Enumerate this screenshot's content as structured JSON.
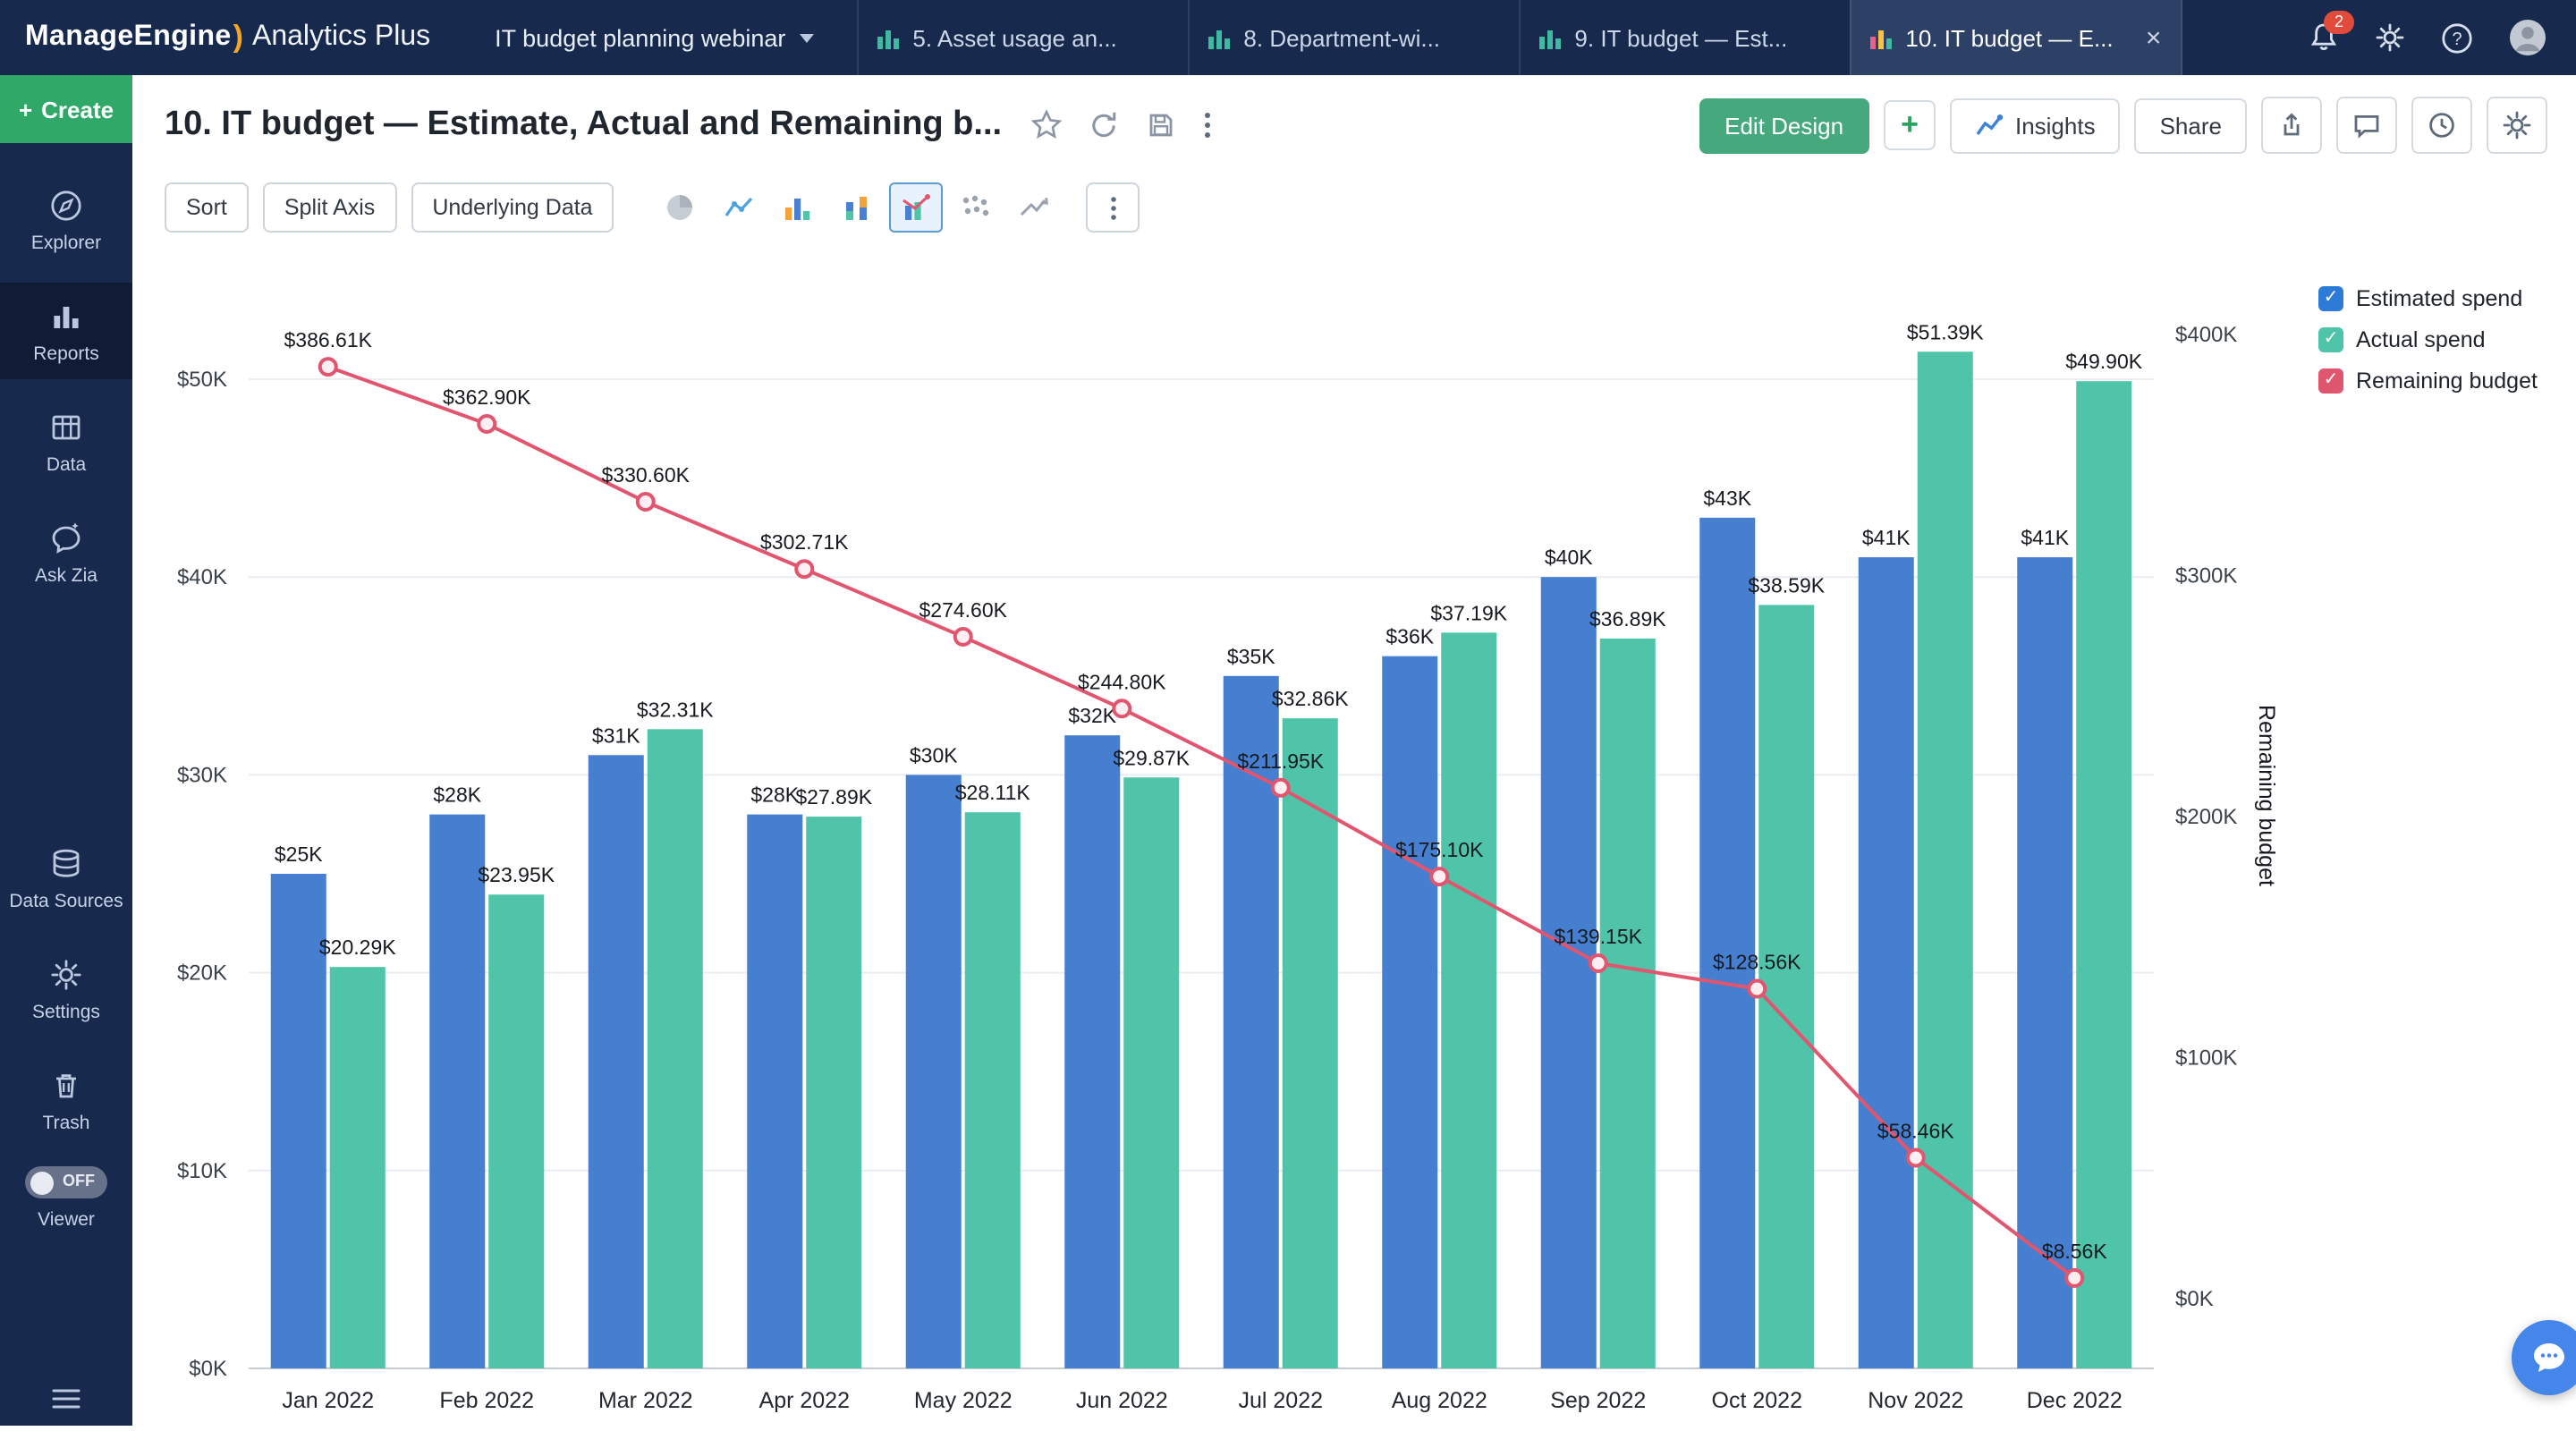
{
  "topbar": {
    "brand_primary": "ManageEngine",
    "brand_secondary": "Analytics Plus",
    "workspace_label": "IT budget planning webinar",
    "tabs": [
      {
        "label": "5. Asset usage an..."
      },
      {
        "label": "8. Department-wi..."
      },
      {
        "label": "9. IT budget — Est..."
      },
      {
        "label": "10. IT budget — E..."
      }
    ],
    "notification_count": "2"
  },
  "sidebar": {
    "create_label": "Create",
    "items": [
      {
        "label": "Explorer"
      },
      {
        "label": "Reports"
      },
      {
        "label": "Data"
      },
      {
        "label": "Ask Zia"
      },
      {
        "label": "Data Sources"
      },
      {
        "label": "Settings"
      },
      {
        "label": "Trash"
      }
    ],
    "viewer_state": "OFF",
    "viewer_label": "Viewer"
  },
  "header": {
    "title": "10. IT budget — Estimate, Actual and Remaining b...",
    "edit_design": "Edit Design",
    "add": "+",
    "insights": "Insights",
    "share": "Share"
  },
  "toolbar": {
    "sort": "Sort",
    "split_axis": "Split Axis",
    "underlying_data": "Underlying Data"
  },
  "chart_data": {
    "type": "combo",
    "categories": [
      "Jan 2022",
      "Feb 2022",
      "Mar 2022",
      "Apr 2022",
      "May 2022",
      "Jun 2022",
      "Jul 2022",
      "Aug 2022",
      "Sep 2022",
      "Oct 2022",
      "Nov 2022",
      "Dec 2022"
    ],
    "series": [
      {
        "name": "Estimated spend",
        "chart": "bar",
        "axis": "left",
        "color": "#477fd0",
        "values": [
          25,
          28,
          31,
          28,
          30,
          32,
          35,
          36,
          40,
          43,
          41,
          41
        ],
        "labels": [
          "$25K",
          "$28K",
          "$31K",
          "$28K",
          "$30K",
          "$32K",
          "$35K",
          "$36K",
          "$40K",
          "$43K",
          "$41K",
          "$41K"
        ]
      },
      {
        "name": "Actual spend",
        "chart": "bar",
        "axis": "left",
        "color": "#4fc4a9",
        "values": [
          20.29,
          23.95,
          32.31,
          27.89,
          28.11,
          29.87,
          32.86,
          37.19,
          36.89,
          38.59,
          51.39,
          49.9
        ],
        "labels": [
          "$20.29K",
          "$23.95K",
          "$32.31K",
          "$27.89K",
          "$28.11K",
          "$29.87K",
          "$32.86K",
          "$37.19K",
          "$36.89K",
          "$38.59K",
          "$51.39K",
          "$49.90K"
        ]
      },
      {
        "name": "Remaining budget",
        "chart": "line",
        "axis": "right",
        "color": "#e2556e",
        "values": [
          386.61,
          362.9,
          330.6,
          302.71,
          274.6,
          244.8,
          211.95,
          175.1,
          139.15,
          128.56,
          58.46,
          8.56
        ],
        "labels": [
          "$386.61K",
          "$362.90K",
          "$330.60K",
          "$302.71K",
          "$274.60K",
          "$244.80K",
          "$211.95K",
          "$175.10K",
          "$139.15K",
          "$128.56K",
          "$58.46K",
          "$8.56K"
        ]
      }
    ],
    "left_axis": {
      "ticks": [
        "$0K",
        "$10K",
        "$20K",
        "$30K",
        "$40K",
        "$50K"
      ],
      "tick_values": [
        0,
        10,
        20,
        30,
        40,
        50
      ]
    },
    "right_axis": {
      "title": "Remaining budget",
      "ticks": [
        "$0K",
        "$100K",
        "$200K",
        "$300K",
        "$400K"
      ],
      "tick_values": [
        0,
        100,
        200,
        300,
        400
      ]
    },
    "legend": [
      {
        "label": "Estimated spend",
        "color": "#2b7bd7"
      },
      {
        "label": "Actual spend",
        "color": "#4fc4a9"
      },
      {
        "label": "Remaining budget",
        "color": "#e0566e"
      }
    ]
  }
}
